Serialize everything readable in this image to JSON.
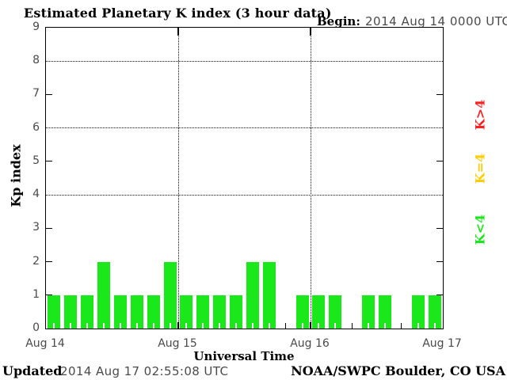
{
  "header": {
    "title": "Estimated Planetary K index (3 hour data)",
    "begin_label": "Begin:",
    "begin_value": "2014 Aug 14 0000 UTC"
  },
  "footer": {
    "updated_label": "Updated",
    "updated_value": "2014 Aug 17 02:55:08 UTC",
    "attribution": "NOAA/SWPC Boulder, CO USA"
  },
  "legend": [
    {
      "label": "K>4",
      "color": "#ff1f1f"
    },
    {
      "label": "K=4",
      "color": "#ffcc00"
    },
    {
      "label": "K<4",
      "color": "#1ae81a"
    }
  ],
  "colors": {
    "k_below_4": "#1ae81a",
    "k_equal_4": "#ffcc00",
    "k_above_4": "#ff1f1f",
    "axis": "#000000",
    "tick_label": "#4a4a4a"
  },
  "chart_data": {
    "type": "bar",
    "title": "Estimated Planetary K index (3 hour data)",
    "xlabel": "Universal Time",
    "ylabel": "Kp index",
    "ylim": [
      0,
      9
    ],
    "yticks": [
      0,
      1,
      2,
      3,
      4,
      5,
      6,
      7,
      8,
      9
    ],
    "dotted_gridlines_y": [
      4,
      6,
      8
    ],
    "side_ticks_y": [
      1,
      2,
      3,
      5,
      7
    ],
    "x_slots": 24,
    "hours_per_slot": 3,
    "x_day_labels": [
      "Aug 14",
      "Aug 15",
      "Aug 16",
      "Aug 17"
    ],
    "day_boundary_slots": [
      0,
      8,
      16,
      24
    ],
    "values": [
      1,
      1,
      1,
      2,
      1,
      1,
      1,
      2,
      1,
      1,
      1,
      1,
      2,
      2,
      null,
      1,
      1,
      1,
      null,
      1,
      1,
      null,
      1,
      1
    ],
    "legend_position": "right",
    "grid": "dotted horizontal at 4,6,8; dotted vertical at day boundaries"
  }
}
